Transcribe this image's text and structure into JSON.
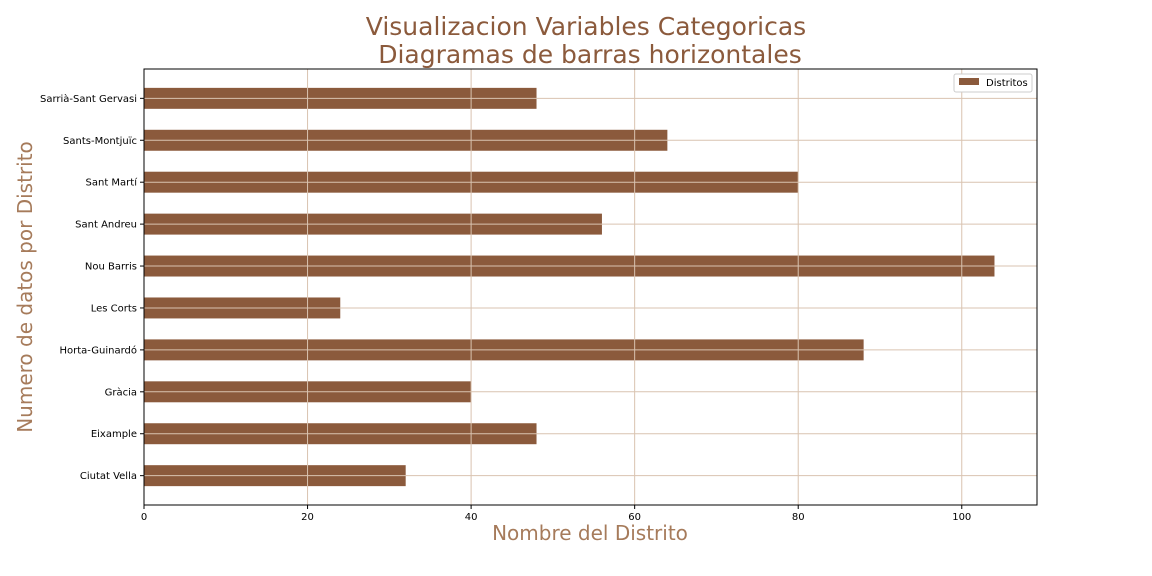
{
  "chart_data": {
    "type": "bar",
    "orientation": "horizontal",
    "title_line1": "Visualizacion Variables Categoricas",
    "title_line2": " Diagramas de barras horizontales",
    "xlabel": "Nombre del Distrito",
    "ylabel": "Numero de datos por Distrito",
    "categories": [
      "Ciutat Vella",
      "Eixample",
      "Gràcia",
      "Horta-Guinardó",
      "Les Corts",
      "Nou Barris",
      "Sant Andreu",
      "Sant Martí",
      "Sants-Montjuïc",
      "Sarrià-Sant Gervasi"
    ],
    "series": [
      {
        "name": "Distritos",
        "values": [
          32,
          48,
          40,
          88,
          24,
          104,
          56,
          80,
          64,
          48
        ]
      }
    ],
    "xlim": [
      0,
      109.2
    ],
    "xticks": [
      0,
      20,
      40,
      60,
      80,
      100
    ],
    "grid": true,
    "legend_position": "top-right",
    "colors": {
      "bar": "#8b5a3c",
      "grid": "#d9c3b0",
      "title": "#8b5a3c",
      "axis_label": "#a67b5b"
    }
  }
}
